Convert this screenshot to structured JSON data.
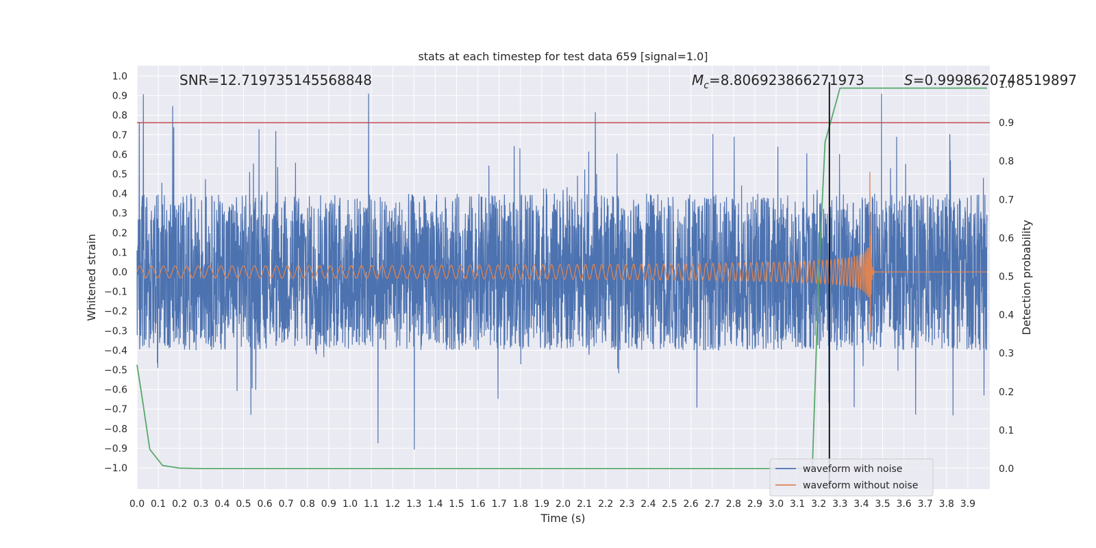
{
  "chart_data": {
    "type": "line",
    "title": "stats at each timestep for test data 659 [signal=1.0]",
    "xlabel": "Time (s)",
    "ylabel": "Whitened strain",
    "y2label": "Detection probability",
    "xlim": [
      0.0,
      4.0
    ],
    "ylim": [
      -1.1,
      1.05
    ],
    "y2lim": [
      -0.05,
      1.0
    ],
    "xticks": [
      "0.0",
      "0.1",
      "0.2",
      "0.3",
      "0.4",
      "0.5",
      "0.6",
      "0.7",
      "0.8",
      "0.9",
      "1.0",
      "1.1",
      "1.2",
      "1.3",
      "1.4",
      "1.5",
      "1.6",
      "1.7",
      "1.8",
      "1.9",
      "2.0",
      "2.1",
      "2.2",
      "2.3",
      "2.4",
      "2.5",
      "2.6",
      "2.7",
      "2.8",
      "2.9",
      "3.0",
      "3.1",
      "3.2",
      "3.3",
      "3.4",
      "3.5",
      "3.6",
      "3.7",
      "3.8",
      "3.9"
    ],
    "yticks": [
      "1.0",
      "0.9",
      "0.8",
      "0.7",
      "0.6",
      "0.5",
      "0.4",
      "0.3",
      "0.2",
      "0.1",
      "0.0",
      "−0.1",
      "−0.2",
      "−0.3",
      "−0.4",
      "−0.5",
      "−0.6",
      "−0.7",
      "−0.8",
      "−0.9",
      "−1.0"
    ],
    "y2ticks": [
      "1.0",
      "0.9",
      "0.8",
      "0.7",
      "0.6",
      "0.5",
      "0.4",
      "0.3",
      "0.2",
      "0.1",
      "0.0"
    ],
    "annotations": {
      "snr": "SNR=12.719735145568848",
      "mc_symbol": "M",
      "mc_sub": "c",
      "mc_value": "=8.806923866271973",
      "s_symbol": "S",
      "s_value": "=0.9998620748519897"
    },
    "threshold_y2": 0.9,
    "merger_time": 3.25,
    "series": [
      {
        "name": "waveform with noise",
        "color": "#4c72b0",
        "noise_amplitude": 0.4,
        "peak_range": [
          -0.96,
          0.91
        ]
      },
      {
        "name": "waveform without noise",
        "color": "#dd8452",
        "t_start": 0.0,
        "t_merger": 3.44,
        "amp_start": 0.03,
        "amp_peak": 0.35,
        "post_merger_level": 0.0
      },
      {
        "name": "detection probability",
        "color": "#55a868",
        "axis": "y2",
        "t": [
          0.0,
          0.02,
          0.06,
          0.12,
          0.2,
          0.3,
          3.17,
          3.2,
          3.23,
          3.3,
          3.99
        ],
        "p": [
          0.27,
          0.2,
          0.05,
          0.008,
          0.001,
          0.0,
          0.0,
          0.5,
          0.85,
          0.99,
          0.99
        ]
      }
    ],
    "threshold_color": "#c44e52",
    "legend": [
      "waveform with noise",
      "waveform without noise"
    ],
    "legend_position": "lower-right"
  }
}
